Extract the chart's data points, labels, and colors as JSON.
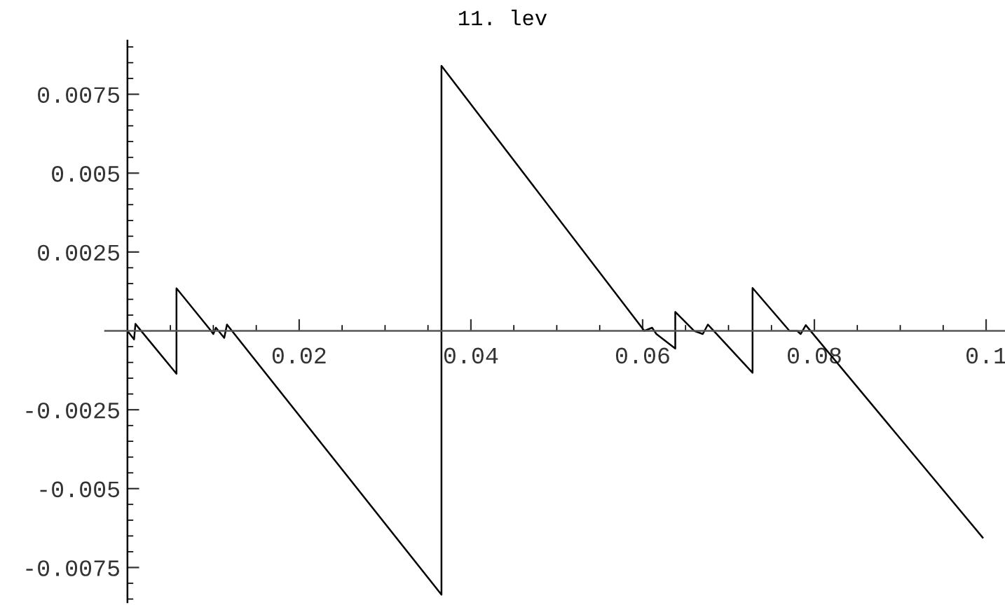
{
  "chart_data": {
    "type": "line",
    "title": "11. lev",
    "x": [
      0,
      0.00077,
      0.00093,
      0.00571,
      0.00571,
      0.00974,
      0.01,
      0.0103,
      0.01127,
      0.01159,
      0.03657,
      0.03657,
      0.0602,
      0.0611,
      0.0616,
      0.0638,
      0.0638,
      0.066,
      0.067,
      0.0676,
      0.0728,
      0.0728,
      0.0771,
      0.078,
      0.0784,
      0.079,
      0.0996
    ],
    "series": [
      {
        "color": "#000000",
        "values": [
          0,
          -0.00027,
          0.00022,
          -0.00136,
          0.00135,
          0,
          -0.0001,
          0.0001,
          -0.00022,
          0.0002,
          -0.00836,
          0.0084,
          0,
          0.0001,
          -0.0001,
          -0.00056,
          0.0006,
          0,
          -0.0001,
          0.0002,
          -0.00133,
          0.00136,
          0,
          0,
          -0.0001,
          0.00018,
          -0.00655
        ]
      }
    ],
    "xlim": [
      -0.0026,
      0.1022
    ],
    "ylim": [
      -0.0086,
      0.0092
    ],
    "xticks": [
      {
        "value": 0.005,
        "label": null
      },
      {
        "value": 0.01,
        "label": null
      },
      {
        "value": 0.015,
        "label": null
      },
      0.02,
      {
        "value": 0.025,
        "label": null
      },
      {
        "value": 0.03,
        "label": null
      },
      {
        "value": 0.035,
        "label": null
      },
      0.04,
      {
        "value": 0.045,
        "label": null
      },
      {
        "value": 0.05,
        "label": null
      },
      {
        "value": 0.055,
        "label": null
      },
      0.06,
      {
        "value": 0.065,
        "label": null
      },
      {
        "value": 0.07,
        "label": null
      },
      {
        "value": 0.075,
        "label": null
      },
      0.08,
      {
        "value": 0.085,
        "label": null
      },
      {
        "value": 0.09,
        "label": null
      },
      {
        "value": 0.095,
        "label": null
      },
      0.1
    ],
    "yticks": [
      {
        "value": -0.0085,
        "label": null
      },
      {
        "value": -0.008,
        "label": null
      },
      -0.0075,
      {
        "value": -0.007,
        "label": null
      },
      {
        "value": -0.0065,
        "label": null
      },
      {
        "value": -0.006,
        "label": null
      },
      {
        "value": -0.0055,
        "label": null
      },
      -0.005,
      {
        "value": -0.0045,
        "label": null
      },
      {
        "value": -0.004,
        "label": null
      },
      {
        "value": -0.0035,
        "label": null
      },
      {
        "value": -0.003,
        "label": null
      },
      -0.0025,
      {
        "value": -0.002,
        "label": null
      },
      {
        "value": -0.0015,
        "label": null
      },
      {
        "value": -0.001,
        "label": null
      },
      {
        "value": -0.0005,
        "label": null
      },
      {
        "value": 0.0005,
        "label": null
      },
      {
        "value": 0.001,
        "label": null
      },
      {
        "value": 0.0015,
        "label": null
      },
      {
        "value": 0.002,
        "label": null
      },
      0.0025,
      {
        "value": 0.003,
        "label": null
      },
      {
        "value": 0.0035,
        "label": null
      },
      {
        "value": 0.004,
        "label": null
      },
      {
        "value": 0.0045,
        "label": null
      },
      0.005,
      {
        "value": 0.0055,
        "label": null
      },
      {
        "value": 0.006,
        "label": null
      },
      {
        "value": 0.0065,
        "label": null
      },
      {
        "value": 0.007,
        "label": null
      },
      0.0075,
      {
        "value": 0.008,
        "label": null
      },
      {
        "value": 0.0085,
        "label": null
      },
      {
        "value": 0.009,
        "label": null
      }
    ],
    "grid": false,
    "legend": false,
    "marker": "none",
    "line_style": "solid"
  }
}
